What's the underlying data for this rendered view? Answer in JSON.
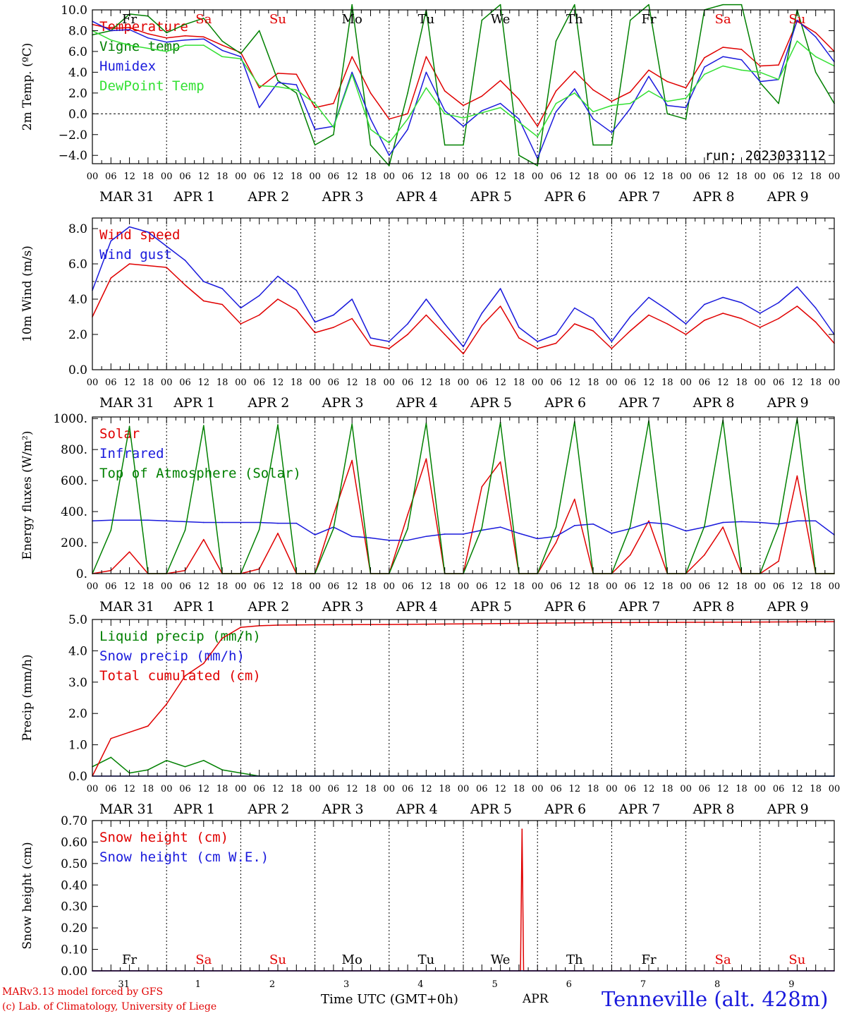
{
  "colors": {
    "red": "#e00000",
    "green": "#008000",
    "blue": "#1a1adc",
    "lightgreen": "#33e033",
    "black": "#000000"
  },
  "footer": {
    "model": "MARv3.13 model forced by GFS",
    "lab": "(c) Lab. of Climatology, University of Liege",
    "xaxis_title": "Time UTC (GMT+0h)",
    "month": "APR",
    "station": "Tenneville (alt. 428m)"
  },
  "time_axis": {
    "hour_labels": [
      "00",
      "06",
      "12",
      "18"
    ],
    "final_label": "00",
    "date_labels": [
      "MAR 31",
      "APR  1",
      "APR  2",
      "APR  3",
      "APR  4",
      "APR  5",
      "APR  6",
      "APR  7",
      "APR  8",
      "APR  9"
    ],
    "weekdays": [
      "Fr",
      "Sa",
      "Su",
      "Mo",
      "Tu",
      "We",
      "Th",
      "Fr",
      "Sa",
      "Su"
    ],
    "weekend": [
      false,
      true,
      true,
      false,
      false,
      false,
      false,
      false,
      true,
      true
    ],
    "day_numbers": [
      "31",
      "1",
      "2",
      "3",
      "4",
      "5",
      "6",
      "7",
      "8",
      "9"
    ]
  },
  "chart_data": [
    {
      "type": "line",
      "id": "temp",
      "ylabel": "2m Temp. (ºC)",
      "ylim": [
        -4.8,
        10.0
      ],
      "yticks": [
        -4.0,
        -2.0,
        0.0,
        2.0,
        4.0,
        6.0,
        8.0,
        10.0
      ],
      "ytick_labels": [
        "−4.0",
        "−2.0",
        "0.0",
        "2.0",
        "4.0",
        "6.0",
        "8.0",
        "10.0"
      ],
      "zero_line": 0.0,
      "x_unit": "hours since 2023-03-31 00 UTC",
      "annotation": "run: 2023033112",
      "series": [
        {
          "name": "Temperature",
          "color": "red",
          "x": [
            0,
            6,
            12,
            18,
            24,
            30,
            36,
            42,
            48,
            54,
            60,
            66,
            72,
            78,
            84,
            90,
            96,
            102,
            108,
            114,
            120,
            126,
            132,
            138,
            144,
            150,
            156,
            162,
            168,
            174,
            180,
            186,
            192,
            198,
            204,
            210,
            216,
            222,
            228,
            234,
            240
          ],
          "y": [
            8.6,
            8.2,
            8.3,
            7.7,
            7.3,
            7.5,
            7.4,
            6.6,
            5.9,
            2.5,
            3.9,
            3.8,
            0.6,
            1.0,
            5.5,
            2.0,
            -0.5,
            0.0,
            5.5,
            2.2,
            0.8,
            1.7,
            3.2,
            1.4,
            -1.2,
            2.2,
            4.1,
            2.3,
            1.2,
            2.1,
            4.2,
            3.1,
            2.5,
            5.4,
            6.4,
            6.2,
            4.6,
            4.7,
            8.9,
            7.8,
            6.0
          ]
        },
        {
          "name": "Vigne temp",
          "color": "green",
          "x": [
            0,
            6,
            12,
            18,
            24,
            30,
            36,
            42,
            48,
            54,
            60,
            66,
            72,
            78,
            84,
            90,
            96,
            102,
            108,
            114,
            120,
            126,
            132,
            138,
            144,
            150,
            156,
            162,
            168,
            174,
            180,
            186,
            192,
            198,
            204,
            210,
            216,
            222,
            228,
            234,
            240
          ],
          "y": [
            7.6,
            8.0,
            9.6,
            9.4,
            7.8,
            8.6,
            9.2,
            7.0,
            5.8,
            8.0,
            3.2,
            2.0,
            -3.0,
            -2.0,
            10.5,
            -3.0,
            -5.0,
            2.0,
            10.0,
            -3.0,
            -3.0,
            9.0,
            10.5,
            -4.0,
            -5.0,
            7.0,
            10.5,
            -3.0,
            -3.0,
            9.0,
            10.5,
            0.0,
            -0.5,
            10.0,
            10.5,
            10.5,
            3.0,
            1.0,
            10.0,
            4.0,
            1.0
          ]
        },
        {
          "name": "Humidex",
          "color": "blue",
          "x": [
            0,
            6,
            12,
            18,
            24,
            30,
            36,
            42,
            48,
            54,
            60,
            66,
            72,
            78,
            84,
            90,
            96,
            102,
            108,
            114,
            120,
            126,
            132,
            138,
            144,
            150,
            156,
            162,
            168,
            174,
            180,
            186,
            192,
            198,
            204,
            210,
            216,
            222,
            228,
            234,
            240
          ],
          "y": [
            8.9,
            8.0,
            8.1,
            7.3,
            6.9,
            7.1,
            7.2,
            6.1,
            5.5,
            0.6,
            3.0,
            2.8,
            -1.5,
            -1.2,
            4.0,
            -0.5,
            -4.0,
            -1.5,
            4.0,
            0.3,
            -1.2,
            0.3,
            1.0,
            -0.5,
            -4.3,
            0.2,
            2.4,
            -0.5,
            -1.8,
            0.5,
            3.6,
            0.8,
            0.6,
            4.5,
            5.5,
            5.2,
            3.1,
            3.3,
            9.0,
            7.4,
            5.0
          ]
        },
        {
          "name": "DewPoint Temp",
          "color": "lightgreen",
          "x": [
            0,
            6,
            12,
            18,
            24,
            30,
            36,
            42,
            48,
            54,
            60,
            66,
            72,
            78,
            84,
            90,
            96,
            102,
            108,
            114,
            120,
            126,
            132,
            138,
            144,
            150,
            156,
            162,
            168,
            174,
            180,
            186,
            192,
            198,
            204,
            210,
            216,
            222,
            228,
            234,
            240
          ],
          "y": [
            8.0,
            7.1,
            6.6,
            6.3,
            6.0,
            6.6,
            6.6,
            5.5,
            5.3,
            2.7,
            2.6,
            2.3,
            1.0,
            -1.3,
            3.8,
            -1.5,
            -2.8,
            -0.5,
            2.5,
            0.0,
            -0.4,
            0.1,
            0.6,
            -0.8,
            -2.2,
            1.0,
            2.0,
            0.2,
            0.8,
            1.0,
            2.2,
            1.2,
            1.5,
            3.8,
            4.6,
            4.2,
            4.0,
            3.3,
            7.0,
            5.5,
            4.6
          ]
        }
      ]
    },
    {
      "type": "line",
      "id": "wind",
      "ylabel": "10m Wind (m/s)",
      "ylim": [
        0.0,
        8.6
      ],
      "yticks": [
        0.0,
        2.0,
        4.0,
        6.0,
        8.0
      ],
      "ytick_labels": [
        "0.0",
        "2.0",
        "4.0",
        "6.0",
        "8.0"
      ],
      "ref_line": 5.0,
      "x_unit": "hours since 2023-03-31 00 UTC",
      "series": [
        {
          "name": "Wind speed",
          "color": "red",
          "x": [
            0,
            6,
            12,
            18,
            24,
            30,
            36,
            42,
            48,
            54,
            60,
            66,
            72,
            78,
            84,
            90,
            96,
            102,
            108,
            114,
            120,
            126,
            132,
            138,
            144,
            150,
            156,
            162,
            168,
            174,
            180,
            186,
            192,
            198,
            204,
            210,
            216,
            222,
            228,
            234,
            240
          ],
          "y": [
            3.0,
            5.2,
            6.0,
            5.9,
            5.8,
            4.8,
            3.9,
            3.7,
            2.6,
            3.1,
            4.0,
            3.4,
            2.1,
            2.4,
            2.9,
            1.4,
            1.2,
            2.0,
            3.1,
            2.0,
            0.9,
            2.5,
            3.6,
            1.8,
            1.2,
            1.5,
            2.6,
            2.2,
            1.2,
            2.2,
            3.1,
            2.6,
            2.0,
            2.8,
            3.2,
            2.9,
            2.4,
            2.9,
            3.6,
            2.7,
            1.5
          ]
        },
        {
          "name": "Wind gust",
          "color": "blue",
          "x": [
            0,
            6,
            12,
            18,
            24,
            30,
            36,
            42,
            48,
            54,
            60,
            66,
            72,
            78,
            84,
            90,
            96,
            102,
            108,
            114,
            120,
            126,
            132,
            138,
            144,
            150,
            156,
            162,
            168,
            174,
            180,
            186,
            192,
            198,
            204,
            210,
            216,
            222,
            228,
            234,
            240
          ],
          "y": [
            4.5,
            7.3,
            8.1,
            7.8,
            7.0,
            6.2,
            5.0,
            4.6,
            3.5,
            4.2,
            5.3,
            4.5,
            2.7,
            3.1,
            4.0,
            1.8,
            1.6,
            2.6,
            4.0,
            2.6,
            1.3,
            3.2,
            4.6,
            2.4,
            1.6,
            2.0,
            3.5,
            2.9,
            1.6,
            3.0,
            4.1,
            3.4,
            2.6,
            3.7,
            4.1,
            3.8,
            3.2,
            3.8,
            4.7,
            3.5,
            2.0
          ]
        }
      ]
    },
    {
      "type": "line",
      "id": "flux",
      "ylabel": "Energy fluxes (W/m²)",
      "ylim": [
        0,
        1010
      ],
      "yticks": [
        0,
        200,
        400,
        600,
        800,
        1000
      ],
      "ytick_labels": [
        "0.",
        "200.",
        "400.",
        "600.",
        "800.",
        "1000."
      ],
      "x_unit": "hours since 2023-03-31 00 UTC",
      "series": [
        {
          "name": "Solar",
          "color": "red",
          "x": [
            0,
            6,
            12,
            18,
            24,
            30,
            36,
            42,
            48,
            54,
            60,
            66,
            72,
            78,
            84,
            90,
            96,
            102,
            108,
            114,
            120,
            126,
            132,
            138,
            144,
            150,
            156,
            162,
            168,
            174,
            180,
            186,
            192,
            198,
            204,
            210,
            216,
            222,
            228,
            234,
            240
          ],
          "y": [
            0,
            20,
            140,
            0,
            0,
            20,
            220,
            0,
            0,
            30,
            260,
            0,
            0,
            380,
            730,
            0,
            0,
            380,
            740,
            0,
            0,
            560,
            720,
            0,
            0,
            200,
            480,
            0,
            0,
            120,
            340,
            0,
            0,
            120,
            300,
            0,
            0,
            80,
            630,
            0,
            0
          ]
        },
        {
          "name": "Infrared",
          "color": "blue",
          "x": [
            0,
            6,
            12,
            18,
            24,
            30,
            36,
            42,
            48,
            54,
            60,
            66,
            72,
            78,
            84,
            90,
            96,
            102,
            108,
            114,
            120,
            126,
            132,
            138,
            144,
            150,
            156,
            162,
            168,
            174,
            180,
            186,
            192,
            198,
            204,
            210,
            216,
            222,
            228,
            234,
            240
          ],
          "y": [
            340,
            345,
            345,
            345,
            340,
            335,
            330,
            330,
            330,
            330,
            325,
            325,
            250,
            300,
            240,
            230,
            215,
            215,
            240,
            255,
            255,
            280,
            300,
            260,
            225,
            240,
            310,
            320,
            260,
            290,
            330,
            320,
            275,
            300,
            330,
            335,
            330,
            320,
            340,
            340,
            250
          ]
        },
        {
          "name": "Top of Atmosphere (Solar)",
          "color": "green",
          "x": [
            0,
            6,
            12,
            18,
            24,
            30,
            36,
            42,
            48,
            54,
            60,
            66,
            72,
            78,
            84,
            90,
            96,
            102,
            108,
            114,
            120,
            126,
            132,
            138,
            144,
            150,
            156,
            162,
            168,
            174,
            180,
            186,
            192,
            198,
            204,
            210,
            216,
            222,
            228,
            234,
            240
          ],
          "y": [
            0,
            280,
            950,
            0,
            0,
            280,
            955,
            0,
            0,
            285,
            960,
            0,
            0,
            290,
            965,
            0,
            0,
            290,
            970,
            0,
            0,
            295,
            975,
            0,
            0,
            300,
            980,
            0,
            0,
            305,
            985,
            0,
            0,
            305,
            990,
            0,
            0,
            310,
            1000,
            0,
            0
          ]
        }
      ]
    },
    {
      "type": "line",
      "id": "precip",
      "ylabel": "Precip (mm/h)",
      "ylim": [
        0.0,
        5.0
      ],
      "yticks": [
        0.0,
        1.0,
        2.0,
        3.0,
        4.0,
        5.0
      ],
      "ytick_labels": [
        "0.0",
        "1.0",
        "2.0",
        "3.0",
        "4.0",
        "5.0"
      ],
      "x_unit": "hours since 2023-03-31 00 UTC",
      "series": [
        {
          "name": "Liquid precip (mm/h)",
          "color": "green",
          "x": [
            0,
            6,
            12,
            18,
            24,
            30,
            36,
            42,
            48,
            54,
            60,
            240
          ],
          "y": [
            0.3,
            0.6,
            0.1,
            0.2,
            0.5,
            0.3,
            0.5,
            0.2,
            0.1,
            0.0,
            0.0,
            0.0
          ]
        },
        {
          "name": "Snow precip (mm/h)",
          "color": "blue",
          "x": [
            0,
            120,
            240
          ],
          "y": [
            0.0,
            0.0,
            0.0
          ]
        },
        {
          "name": "Total cumulated (cm)",
          "color": "red",
          "x": [
            0,
            6,
            12,
            18,
            24,
            30,
            36,
            42,
            48,
            54,
            60,
            72,
            96,
            120,
            144,
            168,
            192,
            216,
            240
          ],
          "y": [
            0.0,
            1.2,
            1.4,
            1.6,
            2.3,
            3.2,
            3.6,
            4.4,
            4.75,
            4.8,
            4.82,
            4.83,
            4.84,
            4.86,
            4.88,
            4.9,
            4.91,
            4.92,
            4.93
          ]
        }
      ]
    },
    {
      "type": "line",
      "id": "snow",
      "ylabel": "Snow height (cm)",
      "ylim": [
        0.0,
        0.7
      ],
      "yticks": [
        0.0,
        0.1,
        0.2,
        0.3,
        0.4,
        0.5,
        0.6,
        0.7
      ],
      "ytick_labels": [
        "0.00",
        "0.10",
        "0.20",
        "0.30",
        "0.40",
        "0.50",
        "0.60",
        "0.70"
      ],
      "x_unit": "hours since 2023-03-31 00 UTC",
      "series": [
        {
          "name": "Snow height (cm)",
          "color": "red",
          "x": [
            0,
            138.5,
            139,
            139.5,
            240
          ],
          "y": [
            0.0,
            0.0,
            0.66,
            0.0,
            0.0
          ]
        },
        {
          "name": "Snow height (cm W.E.)",
          "color": "blue",
          "x": [
            0,
            240
          ],
          "y": [
            0.0,
            0.0
          ]
        }
      ]
    }
  ]
}
